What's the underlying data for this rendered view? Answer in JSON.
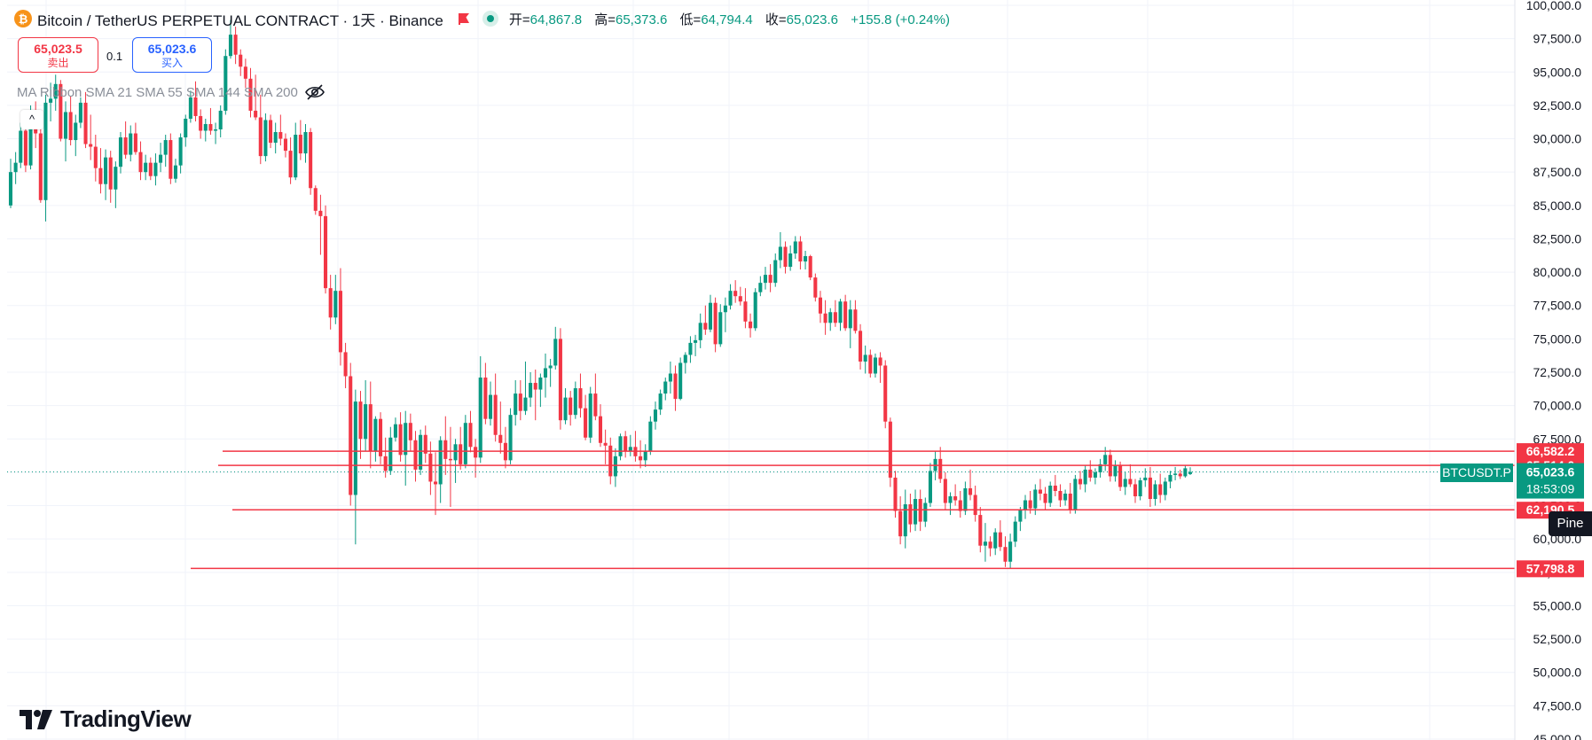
{
  "header": {
    "coin_glyph": "₿",
    "title": "Bitcoin / TetherUS PERPETUAL CONTRACT · 1天 · Binance",
    "open_label": "开=",
    "open_value": "64,867.8",
    "high_label": "高=",
    "high_value": "65,373.6",
    "low_label": "低=",
    "low_value": "64,794.4",
    "close_label": "收=",
    "close_value": "65,023.6",
    "change": "+155.8 (+0.24%)"
  },
  "trade": {
    "sell_price": "65,023.5",
    "sell_label": "卖出",
    "spread": "0.1",
    "buy_price": "65,023.6",
    "buy_label": "买入"
  },
  "indicators_label": "MA Ribbon SMA 21 SMA 55 SMA 144 SMA 200",
  "collapse_glyph": "^",
  "logo_text": "TradingView",
  "pine_label": "Pine",
  "symbol_tag": "BTCUSDT.P",
  "colors": {
    "up": "#089981",
    "down": "#f23645",
    "hline": "#f23645",
    "grid": "#f0f3fa",
    "axis_text": "#131722"
  },
  "chart_data": {
    "type": "candlestick",
    "ylim": [
      45000,
      100000
    ],
    "y_ticks": [
      "45,000.0",
      "47,500.0",
      "50,000.0",
      "52,500.0",
      "55,000.0",
      "57,500.0",
      "60,000.0",
      "62,500.0",
      "65,000.0",
      "67,500.0",
      "70,000.0",
      "72,500.0",
      "75,000.0",
      "77,500.0",
      "80,000.0",
      "82,500.0",
      "85,000.0",
      "87,500.0",
      "90,000.0",
      "92,500.0",
      "95,000.0",
      "97,500.0",
      "100,000.0"
    ],
    "grid": true,
    "horizontal_lines": [
      {
        "price": 66582.2,
        "label": "66,582.2"
      },
      {
        "price": 65514.0,
        "label": "65,514.0"
      },
      {
        "price": 62190.5,
        "label": "62,190.5"
      },
      {
        "price": 57798.8,
        "label": "57,798.8"
      }
    ],
    "last_price": {
      "value": 65023.6,
      "label": "65,023.6",
      "countdown": "18:53:09"
    },
    "candles": [
      [
        85000,
        88500,
        84800,
        87500
      ],
      [
        87500,
        89000,
        86600,
        88200
      ],
      [
        88200,
        91200,
        87800,
        90600
      ],
      [
        90600,
        91000,
        87500,
        88000
      ],
      [
        88000,
        92500,
        87700,
        91600
      ],
      [
        91600,
        92800,
        89300,
        90400
      ],
      [
        90400,
        90800,
        85200,
        85400
      ],
      [
        85400,
        93300,
        83800,
        92700
      ],
      [
        92700,
        94200,
        91300,
        93000
      ],
      [
        93000,
        94800,
        92100,
        94100
      ],
      [
        94100,
        94400,
        89800,
        90000
      ],
      [
        90000,
        92800,
        88300,
        92000
      ],
      [
        92000,
        93200,
        89500,
        89900
      ],
      [
        89900,
        91800,
        88700,
        91200
      ],
      [
        91200,
        93100,
        90800,
        92700
      ],
      [
        92700,
        93500,
        89300,
        89600
      ],
      [
        89600,
        91800,
        88400,
        89400
      ],
      [
        89400,
        90300,
        86800,
        87800
      ],
      [
        87800,
        89300,
        85900,
        86600
      ],
      [
        86600,
        89200,
        85400,
        88600
      ],
      [
        88600,
        89100,
        85200,
        86200
      ],
      [
        86200,
        88300,
        84800,
        87900
      ],
      [
        87900,
        90500,
        87400,
        90100
      ],
      [
        90100,
        91300,
        88500,
        88800
      ],
      [
        88800,
        91000,
        88300,
        90400
      ],
      [
        90400,
        91200,
        88800,
        89000
      ],
      [
        89000,
        89800,
        86900,
        87500
      ],
      [
        87500,
        88800,
        86900,
        88200
      ],
      [
        88200,
        88600,
        86900,
        87200
      ],
      [
        87200,
        88900,
        86500,
        88200
      ],
      [
        88200,
        89700,
        87500,
        88800
      ],
      [
        88800,
        90300,
        87900,
        89900
      ],
      [
        89900,
        90400,
        86600,
        87000
      ],
      [
        87000,
        88500,
        86700,
        88000
      ],
      [
        88000,
        90400,
        87400,
        90100
      ],
      [
        90100,
        91800,
        89400,
        91500
      ],
      [
        91500,
        93600,
        91200,
        93100
      ],
      [
        93100,
        94300,
        91300,
        91700
      ],
      [
        91700,
        92200,
        90000,
        90600
      ],
      [
        90600,
        91500,
        89800,
        91100
      ],
      [
        91100,
        92300,
        90300,
        90600
      ],
      [
        90600,
        91200,
        89600,
        90700
      ],
      [
        90700,
        92500,
        90100,
        92100
      ],
      [
        92100,
        96700,
        91800,
        96200
      ],
      [
        96200,
        98900,
        96000,
        97800
      ],
      [
        97800,
        98400,
        95600,
        96300
      ],
      [
        96300,
        96700,
        94700,
        95400
      ],
      [
        95400,
        96000,
        93800,
        94500
      ],
      [
        94500,
        95300,
        91600,
        92100
      ],
      [
        92100,
        94800,
        91400,
        91600
      ],
      [
        91600,
        93300,
        88100,
        88700
      ],
      [
        88700,
        91900,
        88300,
        91400
      ],
      [
        91400,
        91800,
        89300,
        89700
      ],
      [
        89700,
        91200,
        88900,
        90500
      ],
      [
        90500,
        91800,
        89500,
        90000
      ],
      [
        90000,
        90400,
        88600,
        89100
      ],
      [
        89100,
        90100,
        86600,
        87100
      ],
      [
        87100,
        91200,
        86900,
        90300
      ],
      [
        90300,
        91400,
        88400,
        88900
      ],
      [
        88900,
        91100,
        88200,
        90500
      ],
      [
        90500,
        90800,
        85800,
        86300
      ],
      [
        86300,
        86500,
        84300,
        84600
      ],
      [
        84600,
        85800,
        81300,
        84200
      ],
      [
        84200,
        85000,
        78400,
        78800
      ],
      [
        78800,
        79800,
        75700,
        76600
      ],
      [
        76600,
        79800,
        76100,
        78600
      ],
      [
        78600,
        80300,
        73000,
        74000
      ],
      [
        74000,
        74700,
        71300,
        72200
      ],
      [
        72200,
        73200,
        62500,
        63300
      ],
      [
        63300,
        71200,
        59600,
        70300
      ],
      [
        70300,
        71100,
        66000,
        67500
      ],
      [
        67500,
        71900,
        66600,
        70100
      ],
      [
        70100,
        71800,
        65300,
        66600
      ],
      [
        66600,
        69200,
        65800,
        69000
      ],
      [
        69000,
        69500,
        65600,
        66200
      ],
      [
        66200,
        67600,
        64600,
        65100
      ],
      [
        65100,
        68400,
        64800,
        67600
      ],
      [
        67600,
        69100,
        67300,
        68600
      ],
      [
        68600,
        69500,
        65800,
        66300
      ],
      [
        66300,
        69600,
        64000,
        68700
      ],
      [
        68700,
        69400,
        66600,
        67400
      ],
      [
        67400,
        68100,
        64300,
        65200
      ],
      [
        65200,
        68200,
        64800,
        67800
      ],
      [
        67800,
        68500,
        65700,
        66400
      ],
      [
        66400,
        67300,
        63300,
        64300
      ],
      [
        64300,
        66500,
        61800,
        64100
      ],
      [
        64100,
        67700,
        62700,
        67400
      ],
      [
        67400,
        69200,
        64800,
        66000
      ],
      [
        66000,
        68400,
        62400,
        65900
      ],
      [
        65900,
        67500,
        64200,
        67100
      ],
      [
        67100,
        68400,
        65200,
        65600
      ],
      [
        65600,
        69300,
        65300,
        68700
      ],
      [
        68700,
        69600,
        66500,
        66900
      ],
      [
        66900,
        67500,
        64600,
        66100
      ],
      [
        66100,
        73700,
        65700,
        72100
      ],
      [
        72100,
        73200,
        68600,
        69000
      ],
      [
        69000,
        71800,
        68500,
        70800
      ],
      [
        70800,
        72400,
        67300,
        67800
      ],
      [
        67800,
        70300,
        66400,
        67200
      ],
      [
        67200,
        68400,
        65300,
        65900
      ],
      [
        65900,
        69800,
        65600,
        69300
      ],
      [
        69300,
        71900,
        68500,
        70900
      ],
      [
        70900,
        71900,
        68900,
        69600
      ],
      [
        69600,
        73300,
        69300,
        70600
      ],
      [
        70600,
        72500,
        69900,
        71700
      ],
      [
        71700,
        72700,
        68900,
        71200
      ],
      [
        71200,
        72400,
        69900,
        72100
      ],
      [
        72100,
        73900,
        70600,
        72800
      ],
      [
        72800,
        73500,
        71400,
        73000
      ],
      [
        73000,
        75900,
        72700,
        75000
      ],
      [
        75000,
        75800,
        68200,
        68900
      ],
      [
        68900,
        71300,
        68600,
        70600
      ],
      [
        70600,
        71100,
        68500,
        69300
      ],
      [
        69300,
        71800,
        69000,
        71300
      ],
      [
        71300,
        72400,
        69100,
        69800
      ],
      [
        69800,
        70800,
        67400,
        67600
      ],
      [
        67600,
        71400,
        67200,
        70900
      ],
      [
        70900,
        72400,
        68900,
        69200
      ],
      [
        69200,
        70100,
        66900,
        67200
      ],
      [
        67200,
        68200,
        65600,
        67000
      ],
      [
        67000,
        67600,
        64100,
        64700
      ],
      [
        64700,
        66800,
        63900,
        66200
      ],
      [
        66200,
        67900,
        65900,
        67700
      ],
      [
        67700,
        68100,
        66100,
        66600
      ],
      [
        66600,
        67800,
        66200,
        66900
      ],
      [
        66900,
        68100,
        65800,
        66200
      ],
      [
        66200,
        67400,
        65300,
        65900
      ],
      [
        65900,
        67100,
        65400,
        66600
      ],
      [
        66600,
        69200,
        66300,
        68800
      ],
      [
        68800,
        70300,
        68200,
        69700
      ],
      [
        69700,
        71200,
        69300,
        70900
      ],
      [
        70900,
        72100,
        70400,
        71800
      ],
      [
        71800,
        73300,
        70900,
        72400
      ],
      [
        72400,
        73000,
        69600,
        70500
      ],
      [
        70500,
        73600,
        70400,
        73200
      ],
      [
        73200,
        74000,
        72400,
        73800
      ],
      [
        73800,
        75200,
        73200,
        74700
      ],
      [
        74700,
        75300,
        73700,
        74900
      ],
      [
        74900,
        76900,
        74300,
        76200
      ],
      [
        76200,
        77500,
        75300,
        75700
      ],
      [
        75700,
        78300,
        75500,
        77700
      ],
      [
        77700,
        78100,
        74000,
        74600
      ],
      [
        74600,
        77600,
        74400,
        77000
      ],
      [
        77000,
        78100,
        75500,
        77500
      ],
      [
        77500,
        79100,
        77200,
        78600
      ],
      [
        78600,
        79400,
        77700,
        78200
      ],
      [
        78200,
        78900,
        77500,
        77800
      ],
      [
        77800,
        78800,
        75800,
        76300
      ],
      [
        76300,
        76900,
        75100,
        75800
      ],
      [
        75800,
        78800,
        75600,
        78500
      ],
      [
        78500,
        79700,
        78200,
        79200
      ],
      [
        79200,
        80400,
        78700,
        79800
      ],
      [
        79800,
        80600,
        78500,
        79200
      ],
      [
        79200,
        81400,
        78900,
        80900
      ],
      [
        80900,
        83000,
        80300,
        81900
      ],
      [
        81900,
        82300,
        79900,
        80400
      ],
      [
        80400,
        82000,
        80100,
        81400
      ],
      [
        81400,
        82700,
        81000,
        82300
      ],
      [
        82300,
        82700,
        80200,
        80800
      ],
      [
        80800,
        81600,
        80200,
        81200
      ],
      [
        81200,
        81300,
        79400,
        79600
      ],
      [
        79600,
        79900,
        77800,
        78100
      ],
      [
        78100,
        78600,
        76200,
        76900
      ],
      [
        76900,
        77900,
        75300,
        76200
      ],
      [
        76200,
        77300,
        75600,
        77000
      ],
      [
        77000,
        77900,
        75900,
        76200
      ],
      [
        76200,
        78000,
        75600,
        77800
      ],
      [
        77800,
        78300,
        75600,
        75800
      ],
      [
        75800,
        77900,
        74300,
        77200
      ],
      [
        77200,
        77900,
        75400,
        75600
      ],
      [
        75600,
        76100,
        72700,
        73300
      ],
      [
        73300,
        74500,
        72400,
        73800
      ],
      [
        73800,
        74200,
        72100,
        72400
      ],
      [
        72400,
        73900,
        72100,
        73600
      ],
      [
        73600,
        74000,
        71700,
        73000
      ],
      [
        73000,
        73400,
        68300,
        68800
      ],
      [
        68800,
        69100,
        63900,
        64600
      ],
      [
        64600,
        65100,
        61600,
        62100
      ],
      [
        62100,
        63200,
        59600,
        60200
      ],
      [
        60200,
        63700,
        59300,
        62600
      ],
      [
        62600,
        63400,
        60500,
        61100
      ],
      [
        61100,
        63700,
        60600,
        63000
      ],
      [
        63000,
        63700,
        60600,
        61300
      ],
      [
        61300,
        63100,
        60900,
        62700
      ],
      [
        62700,
        65700,
        62400,
        65100
      ],
      [
        65100,
        66600,
        64400,
        66000
      ],
      [
        66000,
        66900,
        64200,
        64500
      ],
      [
        64500,
        65000,
        62200,
        62700
      ],
      [
        62700,
        63500,
        61800,
        63200
      ],
      [
        63200,
        64100,
        62500,
        62900
      ],
      [
        62900,
        63600,
        61600,
        62100
      ],
      [
        62100,
        64300,
        61800,
        63800
      ],
      [
        63800,
        65200,
        62900,
        63300
      ],
      [
        63300,
        64000,
        61300,
        61800
      ],
      [
        61800,
        62400,
        59000,
        59500
      ],
      [
        59500,
        61200,
        58300,
        59800
      ],
      [
        59800,
        60200,
        58700,
        59300
      ],
      [
        59300,
        60800,
        58800,
        60500
      ],
      [
        60500,
        61400,
        59100,
        59400
      ],
      [
        59400,
        60200,
        57900,
        58300
      ],
      [
        58300,
        60400,
        57800,
        59800
      ],
      [
        59800,
        61700,
        59400,
        61300
      ],
      [
        61300,
        62400,
        60600,
        62200
      ],
      [
        62200,
        63300,
        61500,
        62900
      ],
      [
        62900,
        63600,
        61900,
        62300
      ],
      [
        62300,
        64100,
        61800,
        63700
      ],
      [
        63700,
        64500,
        62900,
        63400
      ],
      [
        63400,
        63900,
        62200,
        62700
      ],
      [
        62700,
        64300,
        62400,
        64000
      ],
      [
        64000,
        64800,
        63200,
        63600
      ],
      [
        63600,
        64100,
        62400,
        62900
      ],
      [
        62900,
        63700,
        62500,
        63400
      ],
      [
        63400,
        64200,
        61900,
        62200
      ],
      [
        62200,
        64800,
        61900,
        64500
      ],
      [
        64500,
        65100,
        63700,
        64100
      ],
      [
        64100,
        65500,
        63500,
        65200
      ],
      [
        65200,
        65900,
        64300,
        64600
      ],
      [
        64600,
        65300,
        64100,
        65000
      ],
      [
        65000,
        66000,
        64600,
        65600
      ],
      [
        65600,
        66900,
        65100,
        66300
      ],
      [
        66300,
        66700,
        64300,
        64700
      ],
      [
        64700,
        65900,
        64300,
        65500
      ],
      [
        65500,
        65800,
        63600,
        63900
      ],
      [
        63900,
        65000,
        63300,
        64500
      ],
      [
        64500,
        65600,
        63900,
        64100
      ],
      [
        64100,
        64500,
        62700,
        63200
      ],
      [
        63200,
        64600,
        62900,
        64400
      ],
      [
        64400,
        65300,
        63900,
        64600
      ],
      [
        64600,
        65400,
        62400,
        63000
      ],
      [
        63000,
        64400,
        62500,
        64100
      ],
      [
        64100,
        64900,
        62700,
        63300
      ],
      [
        63300,
        64600,
        62900,
        64300
      ],
      [
        64300,
        65100,
        63800,
        64800
      ],
      [
        64800,
        65400,
        64400,
        64900
      ],
      [
        64900,
        65200,
        64500,
        64700
      ],
      [
        64700,
        65500,
        64600,
        65300
      ],
      [
        64867.8,
        65373.6,
        64794.4,
        65023.6
      ]
    ]
  }
}
